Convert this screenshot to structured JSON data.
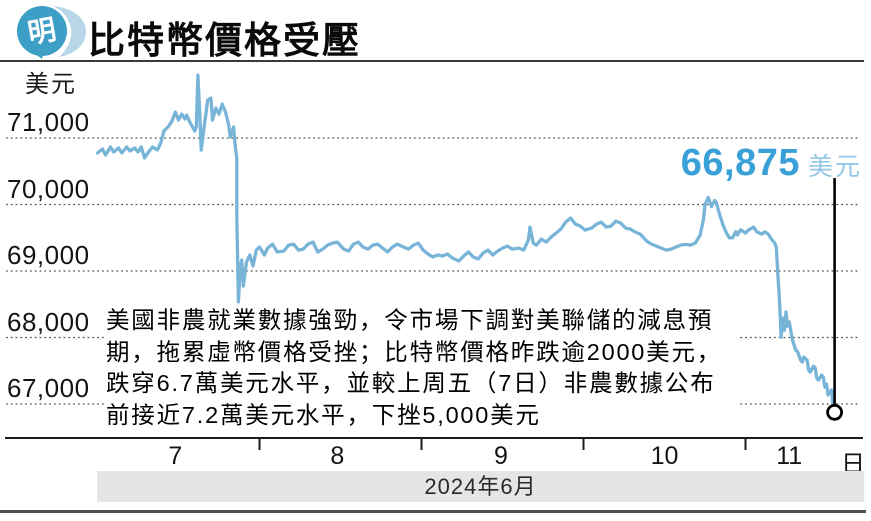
{
  "header": {
    "logo_text": "明",
    "title": "比特幣價格受壓"
  },
  "commentary": {
    "lines": [
      "美國非農就業數據強勁，令市場下調對美聯儲的減息預",
      "期，拖累虛幣價格受挫；比特幣價格昨跌逾2000美元，",
      "跌穿6.7萬美元水平，並較上周五（7日）非農數據公布",
      "前接近7.2萬美元水平，下挫5,000美元"
    ]
  },
  "colors": {
    "accent_blue": "#3aa0d8",
    "accent_light_blue": "#93c7e5",
    "line_blue": "#77b4d8",
    "band_gray": "#e5e5e7",
    "grid_gray": "#4a4a4a",
    "logo_blue": "#3d9fc6",
    "logo_light_blue": "#b7d7e9"
  },
  "chart_data": {
    "type": "line",
    "title": "比特幣價格受壓",
    "ylabel": "美元",
    "xlabel": "2024年6月 (日)",
    "ylim": [
      66600,
      72100
    ],
    "grid": "dotted-horizontal",
    "legend_position": "none",
    "y_axis": {
      "unit_label": "美元",
      "tick_values": [
        71000,
        70000,
        69000,
        68000,
        67000
      ],
      "tick_labels": [
        "71,000",
        "70,000",
        "69,000",
        "68,000",
        "67,000"
      ]
    },
    "x_axis": {
      "tick_labels": [
        "7",
        "8",
        "9",
        "10",
        "11"
      ],
      "label_days": [
        7.48,
        8.48,
        9.49,
        10.5,
        11.27
      ],
      "boundary_days": [
        8,
        9,
        10,
        11
      ],
      "unit_label": "日",
      "period_label": "2024年6月",
      "xlim_days": [
        7,
        11.72
      ]
    },
    "annotation": {
      "value": 66875,
      "value_label": "66,875",
      "unit_label": "美元"
    },
    "series": [
      {
        "name": "比特幣價格 (美元)",
        "color": "#77b4d8",
        "end_marker": "open-circle",
        "points": [
          [
            7.0,
            70775
          ],
          [
            7.03,
            70835
          ],
          [
            7.05,
            70745
          ],
          [
            7.08,
            70865
          ],
          [
            7.1,
            70790
          ],
          [
            7.13,
            70850
          ],
          [
            7.15,
            70775
          ],
          [
            7.18,
            70865
          ],
          [
            7.2,
            70805
          ],
          [
            7.23,
            70850
          ],
          [
            7.25,
            70790
          ],
          [
            7.27,
            70865
          ],
          [
            7.29,
            70700
          ],
          [
            7.32,
            70805
          ],
          [
            7.34,
            70865
          ],
          [
            7.37,
            70820
          ],
          [
            7.39,
            70925
          ],
          [
            7.41,
            71105
          ],
          [
            7.44,
            71180
          ],
          [
            7.46,
            71255
          ],
          [
            7.48,
            71390
          ],
          [
            7.5,
            71270
          ],
          [
            7.52,
            71360
          ],
          [
            7.54,
            71285
          ],
          [
            7.55,
            71345
          ],
          [
            7.57,
            71240
          ],
          [
            7.6,
            71105
          ],
          [
            7.61,
            71165
          ],
          [
            7.62,
            71945
          ],
          [
            7.63,
            71420
          ],
          [
            7.64,
            70820
          ],
          [
            7.66,
            71195
          ],
          [
            7.68,
            71570
          ],
          [
            7.7,
            71600
          ],
          [
            7.71,
            71270
          ],
          [
            7.73,
            71450
          ],
          [
            7.75,
            71360
          ],
          [
            7.77,
            71510
          ],
          [
            7.79,
            71390
          ],
          [
            7.81,
            71195
          ],
          [
            7.82,
            71015
          ],
          [
            7.84,
            71165
          ],
          [
            7.85,
            70880
          ],
          [
            7.86,
            70700
          ],
          [
            7.86,
            69840
          ],
          [
            7.87,
            68535
          ],
          [
            7.88,
            69045
          ],
          [
            7.89,
            69165
          ],
          [
            7.9,
            68775
          ],
          [
            7.92,
            69135
          ],
          [
            7.94,
            69240
          ],
          [
            7.96,
            69075
          ],
          [
            7.98,
            69315
          ],
          [
            8.0,
            69360
          ],
          [
            8.03,
            69240
          ],
          [
            8.05,
            69345
          ],
          [
            8.08,
            69405
          ],
          [
            8.11,
            69285
          ],
          [
            8.15,
            69300
          ],
          [
            8.18,
            69390
          ],
          [
            8.21,
            69405
          ],
          [
            8.24,
            69315
          ],
          [
            8.27,
            69330
          ],
          [
            8.3,
            69405
          ],
          [
            8.33,
            69435
          ],
          [
            8.36,
            69285
          ],
          [
            8.39,
            69330
          ],
          [
            8.42,
            69390
          ],
          [
            8.45,
            69420
          ],
          [
            8.48,
            69435
          ],
          [
            8.52,
            69330
          ],
          [
            8.55,
            69300
          ],
          [
            8.58,
            69405
          ],
          [
            8.61,
            69435
          ],
          [
            8.64,
            69360
          ],
          [
            8.67,
            69330
          ],
          [
            8.7,
            69390
          ],
          [
            8.73,
            69405
          ],
          [
            8.76,
            69345
          ],
          [
            8.79,
            69285
          ],
          [
            8.82,
            69360
          ],
          [
            8.85,
            69405
          ],
          [
            8.89,
            69360
          ],
          [
            8.92,
            69330
          ],
          [
            8.95,
            69390
          ],
          [
            8.98,
            69420
          ],
          [
            9.01,
            69315
          ],
          [
            9.04,
            69255
          ],
          [
            9.07,
            69210
          ],
          [
            9.1,
            69240
          ],
          [
            9.13,
            69225
          ],
          [
            9.16,
            69255
          ],
          [
            9.19,
            69195
          ],
          [
            9.23,
            69150
          ],
          [
            9.26,
            69225
          ],
          [
            9.29,
            69285
          ],
          [
            9.32,
            69210
          ],
          [
            9.35,
            69180
          ],
          [
            9.38,
            69270
          ],
          [
            9.41,
            69315
          ],
          [
            9.44,
            69240
          ],
          [
            9.47,
            69300
          ],
          [
            9.5,
            69345
          ],
          [
            9.53,
            69375
          ],
          [
            9.56,
            69330
          ],
          [
            9.6,
            69345
          ],
          [
            9.63,
            69315
          ],
          [
            9.66,
            69465
          ],
          [
            9.67,
            69660
          ],
          [
            9.69,
            69420
          ],
          [
            9.71,
            69390
          ],
          [
            9.74,
            69480
          ],
          [
            9.77,
            69435
          ],
          [
            9.8,
            69510
          ],
          [
            9.83,
            69570
          ],
          [
            9.86,
            69630
          ],
          [
            9.89,
            69735
          ],
          [
            9.92,
            69795
          ],
          [
            9.95,
            69705
          ],
          [
            9.98,
            69675
          ],
          [
            10.01,
            69615
          ],
          [
            10.05,
            69645
          ],
          [
            10.08,
            69705
          ],
          [
            10.11,
            69735
          ],
          [
            10.14,
            69660
          ],
          [
            10.17,
            69675
          ],
          [
            10.2,
            69750
          ],
          [
            10.23,
            69720
          ],
          [
            10.26,
            69645
          ],
          [
            10.29,
            69630
          ],
          [
            10.32,
            69585
          ],
          [
            10.35,
            69555
          ],
          [
            10.39,
            69450
          ],
          [
            10.42,
            69405
          ],
          [
            10.45,
            69375
          ],
          [
            10.48,
            69345
          ],
          [
            10.51,
            69315
          ],
          [
            10.54,
            69330
          ],
          [
            10.57,
            69360
          ],
          [
            10.6,
            69390
          ],
          [
            10.63,
            69400
          ],
          [
            10.66,
            69390
          ],
          [
            10.69,
            69420
          ],
          [
            10.72,
            69540
          ],
          [
            10.74,
            69770
          ],
          [
            10.75,
            70000
          ],
          [
            10.77,
            70105
          ],
          [
            10.79,
            69970
          ],
          [
            10.81,
            70060
          ],
          [
            10.82,
            70030
          ],
          [
            10.84,
            69850
          ],
          [
            10.86,
            69700
          ],
          [
            10.88,
            69580
          ],
          [
            10.9,
            69500
          ],
          [
            10.92,
            69500
          ],
          [
            10.94,
            69590
          ],
          [
            10.95,
            69545
          ],
          [
            10.97,
            69620
          ],
          [
            11.0,
            69570
          ],
          [
            11.02,
            69620
          ],
          [
            11.05,
            69660
          ],
          [
            11.07,
            69590
          ],
          [
            11.1,
            69555
          ],
          [
            11.12,
            69590
          ],
          [
            11.14,
            69555
          ],
          [
            11.16,
            69480
          ],
          [
            11.18,
            69420
          ],
          [
            11.19,
            69360
          ],
          [
            11.2,
            68940
          ],
          [
            11.21,
            68565
          ],
          [
            11.22,
            68005
          ],
          [
            11.23,
            68295
          ],
          [
            11.24,
            68110
          ],
          [
            11.25,
            68385
          ],
          [
            11.26,
            68170
          ],
          [
            11.27,
            68235
          ],
          [
            11.29,
            67960
          ],
          [
            11.3,
            67890
          ],
          [
            11.31,
            67810
          ],
          [
            11.32,
            67795
          ],
          [
            11.34,
            67660
          ],
          [
            11.35,
            67630
          ],
          [
            11.36,
            67705
          ],
          [
            11.38,
            67660
          ],
          [
            11.39,
            67510
          ],
          [
            11.4,
            67480
          ],
          [
            11.42,
            67570
          ],
          [
            11.43,
            67540
          ],
          [
            11.44,
            67390
          ],
          [
            11.45,
            67360
          ],
          [
            11.47,
            67435
          ],
          [
            11.48,
            67405
          ],
          [
            11.49,
            67255
          ],
          [
            11.5,
            67300
          ],
          [
            11.51,
            67135
          ],
          [
            11.53,
            67210
          ],
          [
            11.54,
            66985
          ],
          [
            11.55,
            66875
          ]
        ]
      }
    ]
  }
}
